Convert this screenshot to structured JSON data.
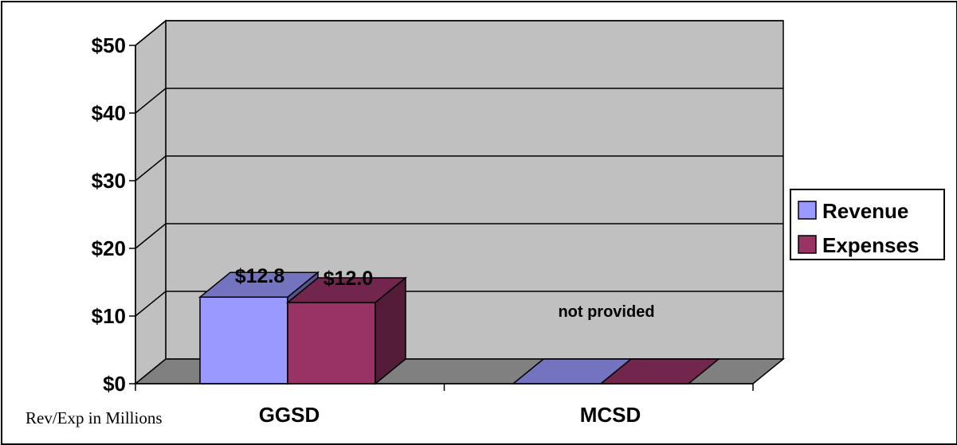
{
  "chart_data": {
    "type": "bar",
    "categories": [
      "GGSD",
      "MCSD"
    ],
    "series": [
      {
        "name": "Revenue",
        "values": [
          12.8,
          null
        ],
        "color": "#9999ff"
      },
      {
        "name": "Expenses",
        "values": [
          12.0,
          null
        ],
        "color": "#993366"
      }
    ],
    "data_labels": [
      "$12.8",
      "$12.0"
    ],
    "y_ticks": [
      "$0",
      "$10",
      "$20",
      "$30",
      "$40",
      "$50"
    ],
    "ylim": [
      0,
      50
    ],
    "grid": true,
    "legend_position": "right",
    "annotation": "not provided",
    "footnote": "Rev/Exp in Millions",
    "wall_color": "#c0c0c0",
    "floor_color": "#808080"
  }
}
